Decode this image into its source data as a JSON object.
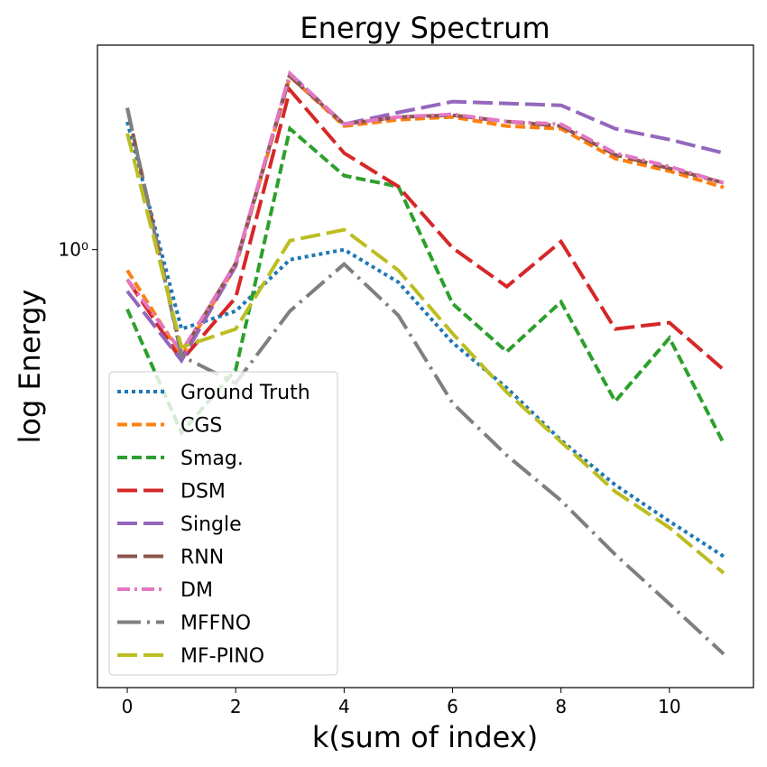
{
  "chart_data": {
    "type": "line",
    "title": "Energy Spectrum",
    "xlabel": "k(sum of index)",
    "ylabel": "log Energy",
    "x": [
      0,
      1,
      2,
      3,
      4,
      5,
      6,
      7,
      8,
      9,
      10,
      11
    ],
    "xlim": [
      -0.55,
      11.55
    ],
    "xticks": [
      0,
      2,
      4,
      6,
      8,
      10
    ],
    "ylim": [
      0.107,
      2.84
    ],
    "yticks": [
      {
        "value": 1,
        "label": "10⁰"
      }
    ],
    "log_y": true,
    "legend": "lower left",
    "series": [
      {
        "name": "Ground Truth",
        "color": "#1f77b4",
        "linestyle": "dotted",
        "values": [
          1.92,
          0.667,
          0.731,
          0.95,
          1.0,
          0.847,
          0.622,
          0.494,
          0.378,
          0.301,
          0.25,
          0.209
        ]
      },
      {
        "name": "CGS",
        "color": "#ff7f0e",
        "linestyle": "dashed",
        "values": [
          0.9,
          0.581,
          0.92,
          2.421,
          1.879,
          1.941,
          1.968,
          1.879,
          1.854,
          1.592,
          1.493,
          1.374
        ]
      },
      {
        "name": "Smag.",
        "color": "#2ca02c",
        "linestyle": "dashed",
        "values": [
          0.738,
          0.393,
          0.542,
          1.854,
          1.459,
          1.38,
          0.759,
          0.594,
          0.766,
          0.461,
          0.637,
          0.372
        ]
      },
      {
        "name": "DSM",
        "color": "#d62728",
        "linestyle": "longdash",
        "values": [
          0.859,
          0.568,
          0.783,
          2.259,
          1.637,
          1.38,
          1.009,
          0.828,
          1.042,
          0.667,
          0.689,
          0.542
        ]
      },
      {
        "name": "Single",
        "color": "#9467bd",
        "linestyle": "longdash",
        "values": [
          0.809,
          0.568,
          0.92,
          2.455,
          1.897,
          2.014,
          2.128,
          2.109,
          2.089,
          1.854,
          1.754,
          1.637
        ]
      },
      {
        "name": "RNN",
        "color": "#8c564b",
        "linestyle": "longdash",
        "values": [
          2.061,
          0.589,
          0.933,
          2.421,
          1.897,
          1.968,
          1.986,
          1.923,
          1.879,
          1.622,
          1.514,
          1.406
        ]
      },
      {
        "name": "DM",
        "color": "#e377c2",
        "linestyle": "dashdot",
        "values": [
          0.859,
          0.594,
          0.933,
          2.455,
          1.897,
          1.968,
          1.995,
          1.923,
          1.897,
          1.637,
          1.528,
          1.406
        ]
      },
      {
        "name": "MFFNO",
        "color": "#7f7f7f",
        "linestyle": "longdashdot",
        "values": [
          2.061,
          0.581,
          0.506,
          0.731,
          0.929,
          0.715,
          0.457,
          0.35,
          0.278,
          0.211,
          0.164,
          0.127
        ]
      },
      {
        "name": "MF-PINO",
        "color": "#bcbd22",
        "linestyle": "longdash",
        "values": [
          1.811,
          0.608,
          0.667,
          1.047,
          1.107,
          0.9,
          0.652,
          0.483,
          0.375,
          0.291,
          0.242,
          0.192
        ]
      }
    ]
  }
}
